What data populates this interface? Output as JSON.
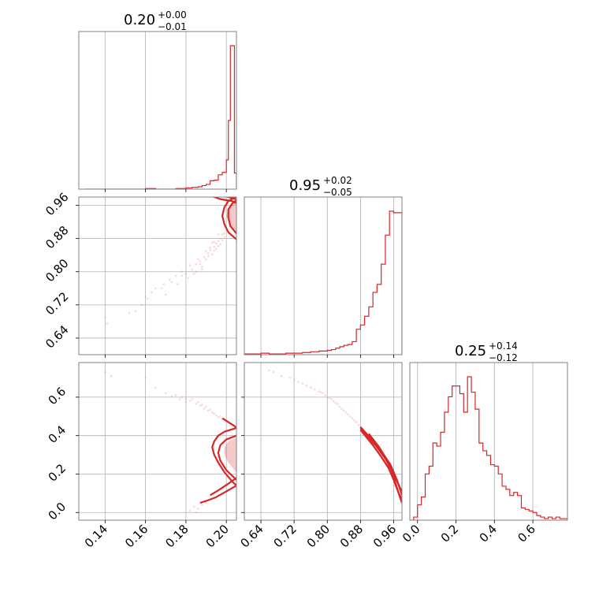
{
  "colors": {
    "accent": "#d62728",
    "grid": "#b0b0b0",
    "frame": "#808080"
  },
  "chart_data": {
    "type": "corner",
    "parameters": [
      {
        "title_value": "0.20",
        "title_plus": "+0.00",
        "title_minus": "−0.01",
        "range": [
          0.127,
          0.205
        ],
        "ticks": [
          0.14,
          0.16,
          0.18,
          0.2
        ],
        "tick_labels": [
          "0.14",
          "0.16",
          "0.18",
          "0.20"
        ],
        "hist": {
          "type": "step",
          "edges": [
            0.13,
            0.135,
            0.14,
            0.145,
            0.15,
            0.155,
            0.16,
            0.165,
            0.17,
            0.175,
            0.18,
            0.183,
            0.186,
            0.188,
            0.19,
            0.192,
            0.194,
            0.196,
            0.198,
            0.2,
            0.201,
            0.202,
            0.203,
            0.204,
            0.205
          ],
          "counts": [
            0,
            0,
            0,
            0,
            0,
            0,
            1,
            0,
            0,
            1,
            2,
            3,
            4,
            6,
            8,
            14,
            15,
            24,
            28,
            49,
            115,
            240,
            240,
            27
          ]
        }
      },
      {
        "title_value": "0.95",
        "title_plus": "+0.02",
        "title_minus": "−0.05",
        "range": [
          0.6,
          0.98
        ],
        "ticks": [
          0.64,
          0.72,
          0.8,
          0.88,
          0.96
        ],
        "tick_labels": [
          "0.64",
          "0.72",
          "0.80",
          "0.88",
          "0.96"
        ],
        "hist": {
          "type": "step",
          "edges": [
            0.6,
            0.64,
            0.66,
            0.7,
            0.74,
            0.76,
            0.78,
            0.8,
            0.81,
            0.82,
            0.83,
            0.84,
            0.85,
            0.86,
            0.87,
            0.88,
            0.89,
            0.9,
            0.91,
            0.92,
            0.93,
            0.94,
            0.95,
            0.96,
            0.965,
            0.98
          ],
          "counts": [
            1,
            2,
            1,
            2,
            3,
            4,
            5,
            6,
            7,
            9,
            11,
            13,
            14,
            18,
            35,
            41,
            53,
            66,
            86,
            97,
            125,
            165,
            198,
            196,
            196
          ]
        }
      },
      {
        "title_value": "0.25",
        "title_plus": "+0.14",
        "title_minus": "−0.12",
        "range": [
          -0.04,
          0.78
        ],
        "ticks": [
          0.0,
          0.2,
          0.4,
          0.6
        ],
        "tick_labels": [
          "0.0",
          "0.2",
          "0.4",
          "0.6"
        ],
        "hist": {
          "type": "step",
          "edges": [
            -0.04,
            -0.02,
            0.0,
            0.02,
            0.04,
            0.06,
            0.08,
            0.1,
            0.12,
            0.14,
            0.16,
            0.18,
            0.2,
            0.22,
            0.24,
            0.26,
            0.28,
            0.3,
            0.32,
            0.34,
            0.36,
            0.38,
            0.4,
            0.42,
            0.44,
            0.46,
            0.48,
            0.5,
            0.52,
            0.54,
            0.56,
            0.58,
            0.6,
            0.62,
            0.64,
            0.66,
            0.68,
            0.7,
            0.72,
            0.74,
            0.76,
            0.78
          ],
          "counts": [
            0,
            2,
            10,
            15,
            30,
            35,
            50,
            48,
            57,
            70,
            80,
            87,
            87,
            82,
            70,
            93,
            83,
            72,
            50,
            45,
            42,
            36,
            35,
            30,
            22,
            20,
            16,
            18,
            16,
            8,
            7,
            6,
            5,
            3,
            2,
            1,
            2,
            1,
            2,
            1,
            1
          ]
        }
      }
    ],
    "panels_2d": [
      {
        "x_param": 0,
        "y_param": 1,
        "contours": [
          [
            [
              0.19,
              0.987
            ],
            [
              0.197,
              0.975
            ],
            [
              0.203,
              0.97
            ],
            [
              0.205,
              0.965
            ]
          ],
          [
            [
              0.194,
              0.99
            ],
            [
              0.199,
              0.983
            ],
            [
              0.203,
              0.977
            ],
            [
              0.205,
              0.975
            ]
          ],
          [
            [
              0.205,
              0.878
            ],
            [
              0.201,
              0.895
            ],
            [
              0.199,
              0.915
            ],
            [
              0.198,
              0.935
            ],
            [
              0.199,
              0.955
            ],
            [
              0.201,
              0.97
            ],
            [
              0.205,
              0.982
            ]
          ],
          [
            [
              0.205,
              0.892
            ],
            [
              0.202,
              0.91
            ],
            [
              0.201,
              0.93
            ],
            [
              0.201,
              0.95
            ],
            [
              0.203,
              0.965
            ],
            [
              0.205,
              0.972
            ]
          ]
        ],
        "fill_region": [
          [
            0.205,
            0.895
          ],
          [
            0.202,
            0.91
          ],
          [
            0.2,
            0.935
          ],
          [
            0.201,
            0.955
          ],
          [
            0.203,
            0.97
          ],
          [
            0.205,
            0.975
          ]
        ],
        "points": [
          [
            0.14,
            0.69
          ],
          [
            0.141,
            0.675
          ],
          [
            0.155,
            0.705
          ],
          [
            0.16,
            0.74
          ],
          [
            0.161,
            0.735
          ],
          [
            0.163,
            0.75
          ],
          [
            0.168,
            0.76
          ],
          [
            0.17,
            0.745
          ],
          [
            0.173,
            0.775
          ],
          [
            0.176,
            0.77
          ],
          [
            0.178,
            0.79
          ],
          [
            0.18,
            0.795
          ],
          [
            0.181,
            0.785
          ],
          [
            0.183,
            0.805
          ],
          [
            0.185,
            0.8
          ],
          [
            0.185,
            0.818
          ],
          [
            0.187,
            0.825
          ],
          [
            0.188,
            0.812
          ],
          [
            0.189,
            0.835
          ],
          [
            0.19,
            0.83
          ],
          [
            0.191,
            0.845
          ],
          [
            0.192,
            0.852
          ],
          [
            0.193,
            0.842
          ],
          [
            0.194,
            0.86
          ],
          [
            0.195,
            0.868
          ],
          [
            0.195,
            0.855
          ],
          [
            0.196,
            0.874
          ],
          [
            0.197,
            0.88
          ],
          [
            0.197,
            0.866
          ],
          [
            0.198,
            0.89
          ],
          [
            0.199,
            0.884
          ],
          [
            0.196,
            0.89
          ],
          [
            0.193,
            0.87
          ],
          [
            0.19,
            0.85
          ],
          [
            0.186,
            0.83
          ],
          [
            0.182,
            0.815
          ],
          [
            0.178,
            0.8
          ],
          [
            0.175,
            0.79
          ],
          [
            0.172,
            0.78
          ],
          [
            0.169,
            0.77
          ],
          [
            0.165,
            0.76
          ],
          [
            0.158,
            0.72
          ],
          [
            0.152,
            0.7
          ],
          [
            0.184,
            0.795
          ],
          [
            0.188,
            0.806
          ],
          [
            0.192,
            0.858
          ],
          [
            0.194,
            0.872
          ],
          [
            0.191,
            0.838
          ],
          [
            0.187,
            0.818
          ],
          [
            0.199,
            0.892
          ],
          [
            0.198,
            0.876
          ],
          [
            0.196,
            0.862
          ],
          [
            0.194,
            0.851
          ]
        ]
      },
      {
        "x_param": 0,
        "y_param": 2,
        "contours": [
          [
            [
              0.205,
              0.44
            ],
            [
              0.199,
              0.42
            ],
            [
              0.196,
              0.4
            ],
            [
              0.194,
              0.37
            ],
            [
              0.193,
              0.34
            ],
            [
              0.194,
              0.3
            ],
            [
              0.196,
              0.26
            ],
            [
              0.199,
              0.21
            ],
            [
              0.203,
              0.16
            ],
            [
              0.205,
              0.14
            ]
          ],
          [
            [
              0.205,
              0.4
            ],
            [
              0.2,
              0.38
            ],
            [
              0.197,
              0.35
            ],
            [
              0.196,
              0.31
            ],
            [
              0.197,
              0.27
            ],
            [
              0.2,
              0.22
            ],
            [
              0.204,
              0.18
            ],
            [
              0.205,
              0.17
            ]
          ],
          [
            [
              0.198,
              0.49
            ],
            [
              0.201,
              0.47
            ],
            [
              0.204,
              0.45
            ],
            [
              0.205,
              0.44
            ]
          ],
          [
            [
              0.205,
              0.14
            ],
            [
              0.2,
              0.11
            ],
            [
              0.195,
              0.08
            ],
            [
              0.19,
              0.06
            ],
            [
              0.187,
              0.05
            ]
          ],
          [
            [
              0.205,
              0.18
            ],
            [
              0.201,
              0.15
            ],
            [
              0.196,
              0.115
            ],
            [
              0.192,
              0.09
            ]
          ]
        ],
        "fill_region": [
          [
            0.205,
            0.39
          ],
          [
            0.201,
            0.37
          ],
          [
            0.199,
            0.34
          ],
          [
            0.199,
            0.3
          ],
          [
            0.201,
            0.26
          ],
          [
            0.204,
            0.22
          ],
          [
            0.205,
            0.21
          ]
        ],
        "points": [
          [
            0.14,
            0.73
          ],
          [
            0.143,
            0.71
          ],
          [
            0.16,
            0.7
          ],
          [
            0.165,
            0.65
          ],
          [
            0.17,
            0.62
          ],
          [
            0.175,
            0.61
          ],
          [
            0.178,
            0.6
          ],
          [
            0.18,
            0.59
          ],
          [
            0.182,
            0.58
          ],
          [
            0.185,
            0.565
          ],
          [
            0.187,
            0.555
          ],
          [
            0.189,
            0.54
          ],
          [
            0.191,
            0.53
          ],
          [
            0.193,
            0.52
          ],
          [
            0.195,
            0.505
          ],
          [
            0.196,
            0.495
          ],
          [
            0.183,
            0.59
          ],
          [
            0.186,
            0.575
          ],
          [
            0.19,
            0.55
          ],
          [
            0.192,
            0.535
          ],
          [
            0.194,
            0.515
          ],
          [
            0.197,
            0.5
          ],
          [
            0.18,
            0.575
          ],
          [
            0.177,
            0.59
          ],
          [
            0.173,
            0.605
          ],
          [
            0.188,
            0.56
          ],
          [
            0.184,
            0.03
          ],
          [
            0.186,
            0.02
          ],
          [
            0.188,
            0.04
          ],
          [
            0.182,
            0.01
          ],
          [
            0.19,
            0.05
          ],
          [
            0.185,
            0.0
          ]
        ]
      },
      {
        "x_param": 1,
        "y_param": 2,
        "contours": [
          [
            [
              0.88,
              0.44
            ],
            [
              0.9,
              0.39
            ],
            [
              0.92,
              0.34
            ],
            [
              0.94,
              0.28
            ],
            [
              0.955,
              0.22
            ],
            [
              0.965,
              0.15
            ],
            [
              0.975,
              0.08
            ],
            [
              0.98,
              0.05
            ]
          ],
          [
            [
              0.88,
              0.43
            ],
            [
              0.91,
              0.35
            ],
            [
              0.93,
              0.29
            ],
            [
              0.948,
              0.23
            ],
            [
              0.96,
              0.17
            ],
            [
              0.972,
              0.1
            ],
            [
              0.98,
              0.07
            ]
          ],
          [
            [
              0.9,
              0.41
            ],
            [
              0.925,
              0.34
            ],
            [
              0.945,
              0.27
            ],
            [
              0.96,
              0.2
            ],
            [
              0.975,
              0.13
            ],
            [
              0.98,
              0.11
            ]
          ],
          [
            [
              0.88,
              0.445
            ],
            [
              0.905,
              0.385
            ],
            [
              0.93,
              0.32
            ],
            [
              0.952,
              0.25
            ],
            [
              0.968,
              0.17
            ],
            [
              0.98,
              0.09
            ]
          ]
        ],
        "fill_region": [
          [
            0.92,
            0.35
          ],
          [
            0.94,
            0.295
          ],
          [
            0.955,
            0.24
          ],
          [
            0.965,
            0.18
          ],
          [
            0.96,
            0.175
          ],
          [
            0.95,
            0.23
          ],
          [
            0.935,
            0.285
          ],
          [
            0.915,
            0.34
          ]
        ],
        "points": [
          [
            0.66,
            0.74
          ],
          [
            0.67,
            0.73
          ],
          [
            0.69,
            0.71
          ],
          [
            0.72,
            0.69
          ],
          [
            0.74,
            0.67
          ],
          [
            0.76,
            0.65
          ],
          [
            0.78,
            0.63
          ],
          [
            0.79,
            0.62
          ],
          [
            0.8,
            0.6
          ],
          [
            0.81,
            0.59
          ],
          [
            0.82,
            0.57
          ],
          [
            0.83,
            0.55
          ],
          [
            0.84,
            0.53
          ],
          [
            0.85,
            0.51
          ],
          [
            0.86,
            0.49
          ],
          [
            0.87,
            0.47
          ],
          [
            0.75,
            0.66
          ],
          [
            0.77,
            0.64
          ],
          [
            0.795,
            0.61
          ],
          [
            0.815,
            0.58
          ],
          [
            0.825,
            0.565
          ],
          [
            0.835,
            0.54
          ],
          [
            0.845,
            0.52
          ],
          [
            0.855,
            0.5
          ],
          [
            0.865,
            0.48
          ],
          [
            0.875,
            0.455
          ],
          [
            0.785,
            0.625
          ],
          [
            0.805,
            0.595
          ],
          [
            0.73,
            0.68
          ],
          [
            0.71,
            0.7
          ]
        ]
      }
    ]
  }
}
